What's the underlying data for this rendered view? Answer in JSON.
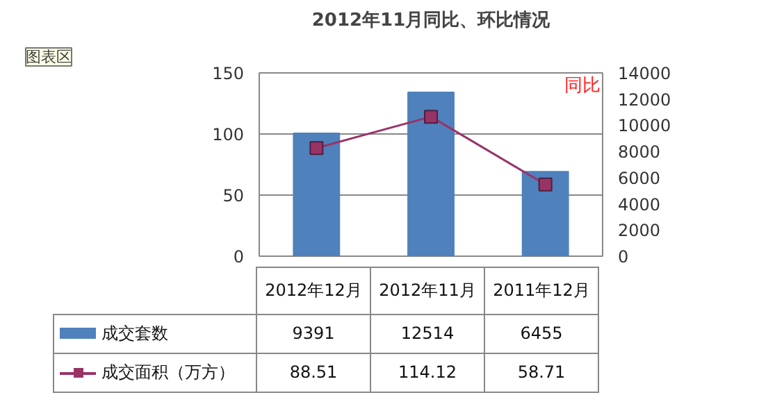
{
  "chart_data": {
    "type": "bar",
    "title": "2012年11月同比、环比情况",
    "categories": [
      "2012年12月",
      "2012年11月",
      "2011年12月"
    ],
    "series": [
      {
        "name": "成交套数",
        "axis": "y2",
        "color": "#4f81bd",
        "values": [
          9391,
          12514,
          6455
        ]
      },
      {
        "name": "成交面积（万方）",
        "type": "line",
        "color": "#993366",
        "values": [
          88.51,
          114.12,
          58.71
        ]
      }
    ],
    "ylim": [
      0,
      150
    ],
    "yticks": [
      0,
      50,
      100,
      150
    ],
    "y2lim": [
      0,
      14000
    ],
    "y2ticks": [
      0,
      2000,
      4000,
      6000,
      8000,
      10000,
      12000,
      14000
    ],
    "grid": "y",
    "marker": "square",
    "legend": "bottom",
    "data_labels": true,
    "annotations": [
      "图表区",
      "同比"
    ]
  }
}
